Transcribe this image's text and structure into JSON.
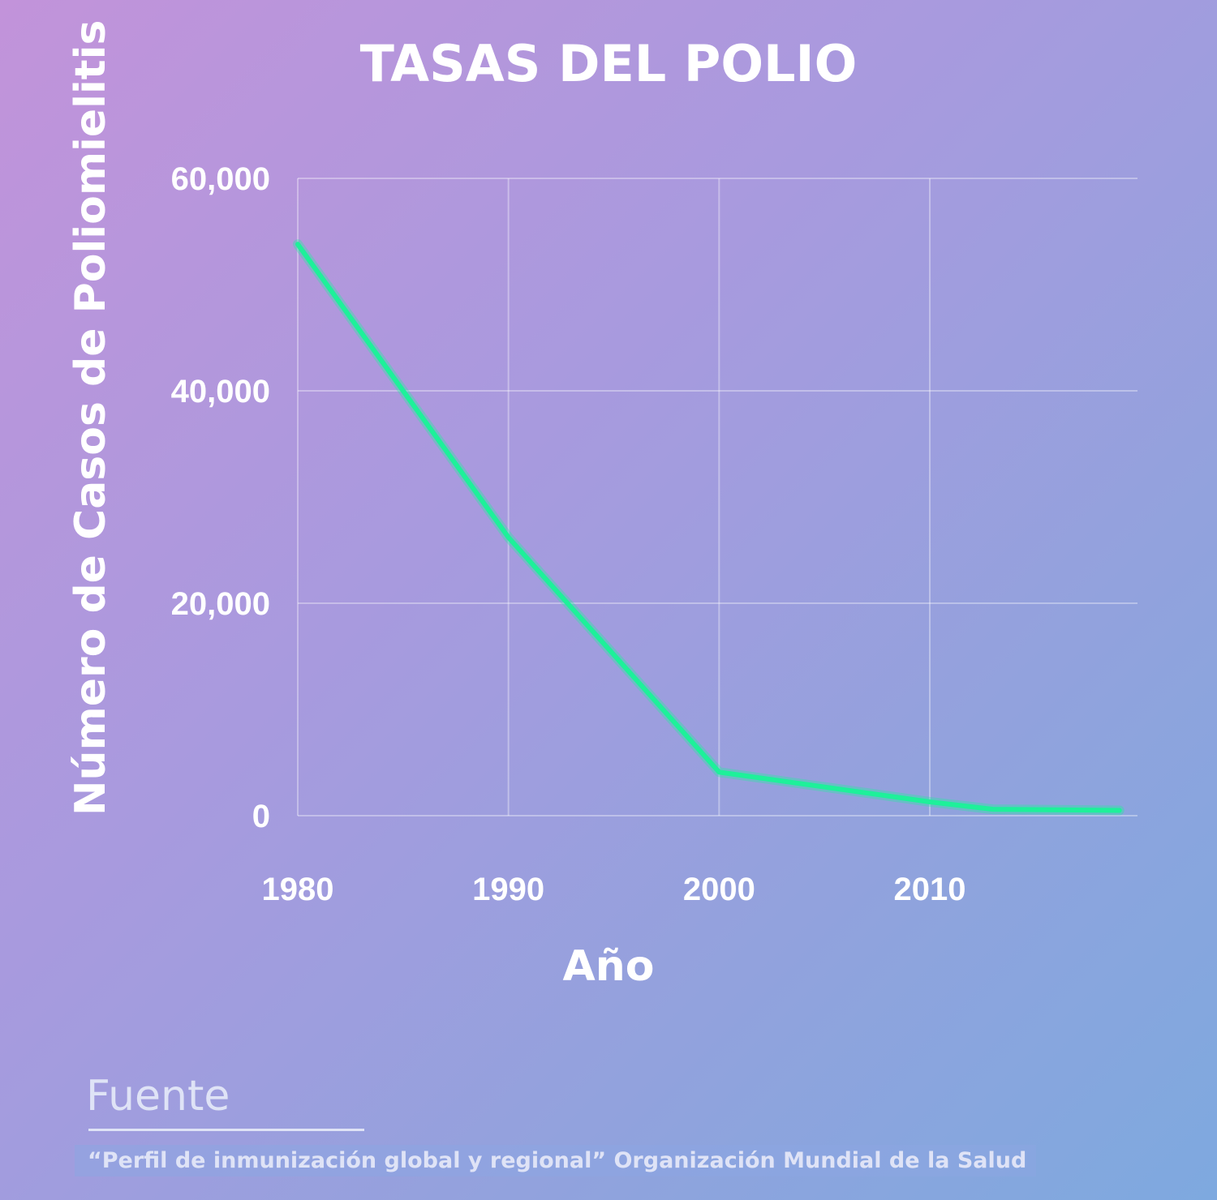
{
  "chart_data": {
    "type": "line",
    "title": "TASAS DEL POLIO",
    "xlabel": "Año",
    "ylabel": "Número de Casos de Poliomielitis",
    "x_ticks": [
      1980,
      1990,
      2000,
      2010
    ],
    "x_tick_labels": [
      "1980",
      "1990",
      "2000",
      "2010"
    ],
    "y_ticks": [
      0,
      20000,
      40000,
      60000
    ],
    "y_tick_labels": [
      "0",
      "20,000",
      "40,000",
      "60,000"
    ],
    "xlim": [
      1980,
      2020
    ],
    "ylim": [
      0,
      60000
    ],
    "grid": true,
    "series": [
      {
        "x": [
          1980,
          1990,
          2000,
          2010,
          2013,
          2019
        ],
        "y": [
          53800,
          26200,
          4100,
          1300,
          600,
          500
        ],
        "color": "#1ef09a"
      }
    ]
  },
  "source": {
    "heading": "Fuente",
    "text": "“Perfil de inmunización global y regional” Organización Mundial de la Salud"
  }
}
